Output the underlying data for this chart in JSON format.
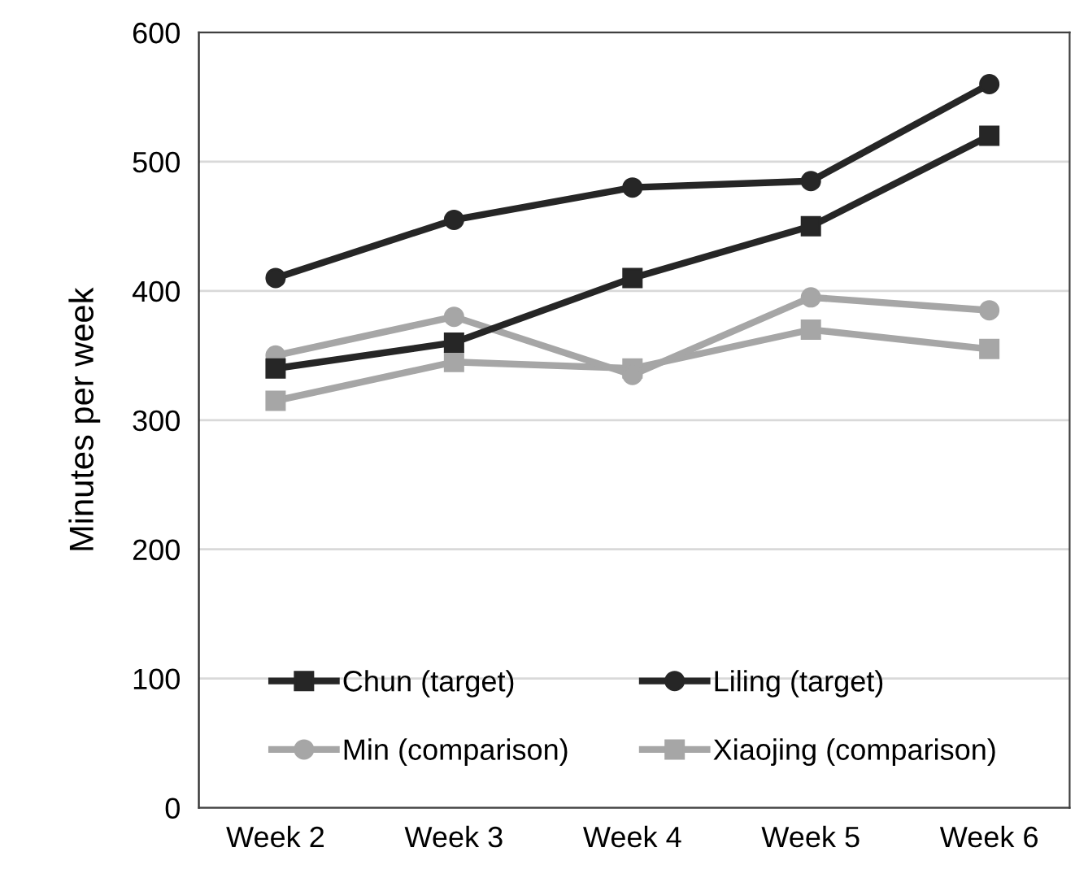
{
  "chart_data": {
    "type": "line",
    "ylabel": "Minutes per week",
    "categories": [
      "Week 2",
      "Week 3",
      "Week 4",
      "Week 5",
      "Week 6"
    ],
    "series": [
      {
        "name": "Chun (target)",
        "color": "#262626",
        "marker": "square",
        "values": [
          340,
          360,
          410,
          450,
          520
        ]
      },
      {
        "name": "Liling (target)",
        "color": "#262626",
        "marker": "circle",
        "values": [
          410,
          455,
          480,
          485,
          560
        ]
      },
      {
        "name": "Min (comparison)",
        "color": "#a6a6a6",
        "marker": "circle",
        "values": [
          350,
          380,
          335,
          395,
          385
        ]
      },
      {
        "name": "Xiaojing (comparison)",
        "color": "#a6a6a6",
        "marker": "square",
        "values": [
          315,
          345,
          340,
          370,
          355
        ]
      }
    ],
    "ylim": [
      0,
      600
    ],
    "yticks": [
      0,
      100,
      200,
      300,
      400,
      500,
      600
    ],
    "grid": "y",
    "legend": "bottom",
    "line_style": "solid"
  }
}
